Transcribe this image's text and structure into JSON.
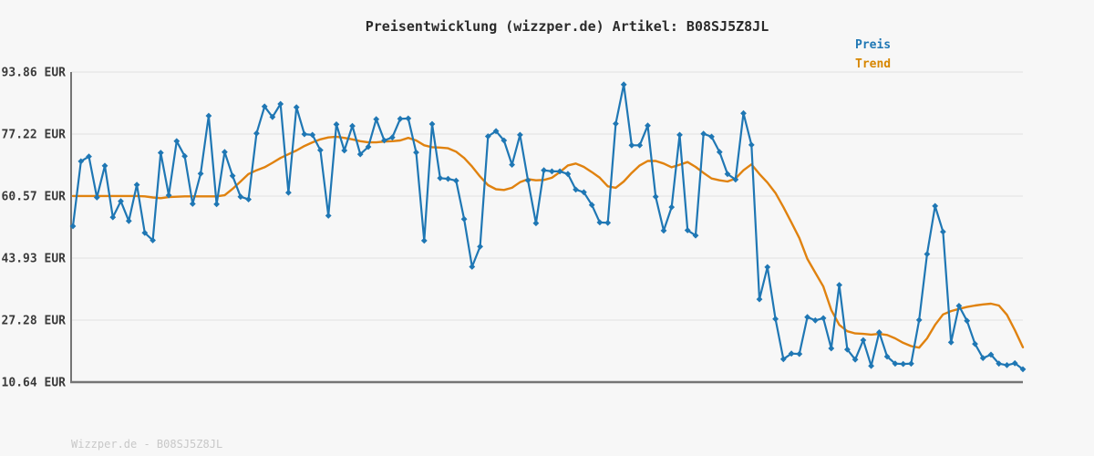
{
  "title": "Preisentwicklung (wizzper.de) Artikel: B08SJ5Z8JL",
  "footer": "Wizzper.de - B08SJ5Z8JL",
  "legend": {
    "preis_label": "Preis",
    "trend_label": "Trend"
  },
  "colors": {
    "background": "#f7f7f7",
    "gridline": "#e6e6e6",
    "spine": "#757575",
    "price": "#1f77b4",
    "trend": "#e0820f",
    "legend_preis": "#1f77b4",
    "legend_trend": "#d78600",
    "title_text": "#2b2b2b",
    "tick_text": "#3a3a3a",
    "footer_text": "#c8c8c8"
  },
  "chart_data": {
    "type": "line",
    "title": "Preisentwicklung (wizzper.de) Artikel: B08SJ5Z8JL",
    "xlabel": "",
    "ylabel": "",
    "ylim": [
      10.64,
      93.86
    ],
    "grid": true,
    "legend_position": "top-right-outside",
    "x_axis_labels": "none",
    "currency": "EUR",
    "y_ticks": [
      {
        "value": 93.86,
        "label": "93.86 EUR"
      },
      {
        "value": 77.22,
        "label": "77.22 EUR"
      },
      {
        "value": 60.57,
        "label": "60.57 EUR"
      },
      {
        "value": 43.93,
        "label": "43.93 EUR"
      },
      {
        "value": 27.28,
        "label": "27.28 EUR"
      },
      {
        "value": 10.64,
        "label": "10.64 EUR"
      }
    ],
    "series": [
      {
        "name": "Preis",
        "color": "#1f77b4",
        "marker": "diamond",
        "values": [
          52.5,
          69.9,
          71.2,
          60.2,
          68.7,
          54.9,
          59.2,
          53.9,
          63.6,
          50.7,
          48.7,
          72.2,
          60.8,
          75.3,
          71.3,
          58.5,
          66.6,
          82.1,
          58.4,
          72.4,
          66.0,
          60.4,
          59.7,
          77.4,
          84.6,
          81.8,
          85.3,
          61.5,
          84.4,
          77.2,
          77.0,
          72.9,
          55.3,
          79.8,
          72.8,
          79.4,
          71.8,
          73.8,
          81.2,
          75.5,
          76.3,
          81.3,
          81.4,
          72.3,
          48.6,
          79.9,
          65.4,
          65.2,
          64.7,
          54.4,
          41.6,
          47.0,
          76.6,
          78.0,
          75.5,
          69.0,
          77.0,
          64.8,
          53.3,
          67.5,
          67.2,
          67.2,
          66.5,
          62.3,
          61.6,
          58.2,
          53.5,
          53.4,
          80.0,
          90.5,
          74.2,
          74.2,
          79.5,
          60.4,
          51.3,
          57.6,
          77.0,
          51.4,
          50.0,
          77.3,
          76.5,
          72.4,
          66.5,
          65.0,
          82.8,
          74.3,
          32.9,
          41.5,
          27.6,
          16.8,
          18.3,
          18.2,
          28.1,
          27.2,
          27.8,
          19.7,
          36.7,
          19.4,
          16.7,
          21.9,
          15.0,
          24.0,
          17.5,
          15.6,
          15.5,
          15.6,
          27.3,
          45.0,
          57.9,
          51.0,
          21.3,
          31.1,
          27.1,
          20.9,
          17.1,
          18.0,
          15.6,
          15.2,
          15.7,
          14.1
        ]
      },
      {
        "name": "Trend",
        "color": "#e0820f",
        "marker": "none",
        "values": [
          60.6,
          60.6,
          60.6,
          60.6,
          60.6,
          60.6,
          60.6,
          60.6,
          60.6,
          60.5,
          60.2,
          60.0,
          60.3,
          60.4,
          60.5,
          60.5,
          60.5,
          60.5,
          60.5,
          60.8,
          62.5,
          64.5,
          66.5,
          67.5,
          68.3,
          69.5,
          70.8,
          71.8,
          72.8,
          74.0,
          75.0,
          75.8,
          76.3,
          76.5,
          76.2,
          75.8,
          75.3,
          75.0,
          75.0,
          75.2,
          75.3,
          75.5,
          76.2,
          75.5,
          74.2,
          73.7,
          73.6,
          73.4,
          72.5,
          70.8,
          68.5,
          65.8,
          63.5,
          62.4,
          62.2,
          62.8,
          64.3,
          65.1,
          64.8,
          64.9,
          65.5,
          67.0,
          68.8,
          69.3,
          68.4,
          67.0,
          65.5,
          63.2,
          62.8,
          64.5,
          66.8,
          68.8,
          70.0,
          70.0,
          69.3,
          68.3,
          69.0,
          69.7,
          68.4,
          66.8,
          65.3,
          64.8,
          64.5,
          65.3,
          67.5,
          69.1,
          66.5,
          64.2,
          61.4,
          57.6,
          53.5,
          49.3,
          43.7,
          40.0,
          36.3,
          30.0,
          26.0,
          24.3,
          23.7,
          23.6,
          23.4,
          23.6,
          23.3,
          22.4,
          21.2,
          20.3,
          19.9,
          22.4,
          26.0,
          28.8,
          29.7,
          30.3,
          30.8,
          31.2,
          31.5,
          31.7,
          31.2,
          28.7,
          24.6,
          20.0
        ]
      }
    ]
  }
}
